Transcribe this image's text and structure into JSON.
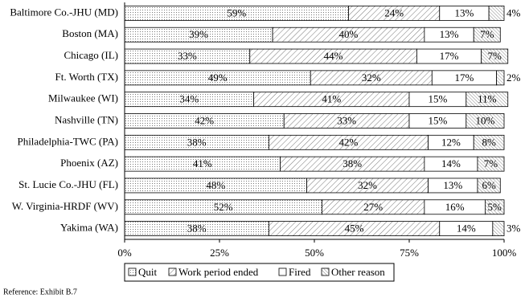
{
  "chart_data": {
    "type": "stacked-bar-horizontal",
    "categories": [
      "Baltimore Co.-JHU (MD)",
      "Boston (MA)",
      "Chicago (IL)",
      "Ft. Worth (TX)",
      "Milwaukee (WI)",
      "Nashville (TN)",
      "Philadelphia-TWC (PA)",
      "Phoenix (AZ)",
      "St. Lucie Co.-JHU (FL)",
      "W. Virginia-HRDF (WV)",
      "Yakima (WA)"
    ],
    "series": [
      {
        "name": "Quit",
        "pattern": "dots",
        "color": "#000000",
        "values": [
          59,
          39,
          33,
          49,
          34,
          42,
          38,
          41,
          48,
          52,
          38
        ],
        "value_labels": [
          "59%",
          "39%",
          "33%",
          "49%",
          "34%",
          "42%",
          "38%",
          "41%",
          "48%",
          "52%",
          "38%"
        ]
      },
      {
        "name": "Work period ended",
        "pattern": "hatch",
        "color": "#000000",
        "values": [
          24,
          40,
          44,
          32,
          41,
          33,
          42,
          38,
          32,
          27,
          45
        ],
        "value_labels": [
          "24%",
          "40%",
          "44%",
          "32%",
          "41%",
          "33%",
          "42%",
          "38%",
          "32%",
          "27%",
          "45%"
        ]
      },
      {
        "name": "Fired",
        "pattern": "none",
        "color": "#000000",
        "values": [
          13,
          13,
          17,
          17,
          15,
          15,
          12,
          14,
          13,
          16,
          14
        ],
        "value_labels": [
          "13%",
          "13%",
          "17%",
          "17%",
          "15%",
          "15%",
          "12%",
          "14%",
          "13%",
          "16%",
          "14%"
        ]
      },
      {
        "name": "Other reason",
        "pattern": "hatch-dense",
        "color": "#000000",
        "values": [
          4,
          7,
          7,
          2,
          11,
          10,
          8,
          7,
          6,
          5,
          3
        ],
        "value_labels": [
          "4%",
          "7%",
          "7%",
          "2%",
          "11%",
          "10%",
          "8%",
          "7%",
          "6%",
          "5%",
          "3%"
        ]
      }
    ],
    "xlim": [
      0,
      100
    ],
    "xticks": [
      {
        "value": 0,
        "label": "0%"
      },
      {
        "value": 25,
        "label": "25%"
      },
      {
        "value": 50,
        "label": "50%"
      },
      {
        "value": 75,
        "label": "75%"
      },
      {
        "value": 100,
        "label": "100%"
      }
    ],
    "legend": "bottom",
    "note": "Reference:  Exhibit B.7"
  }
}
